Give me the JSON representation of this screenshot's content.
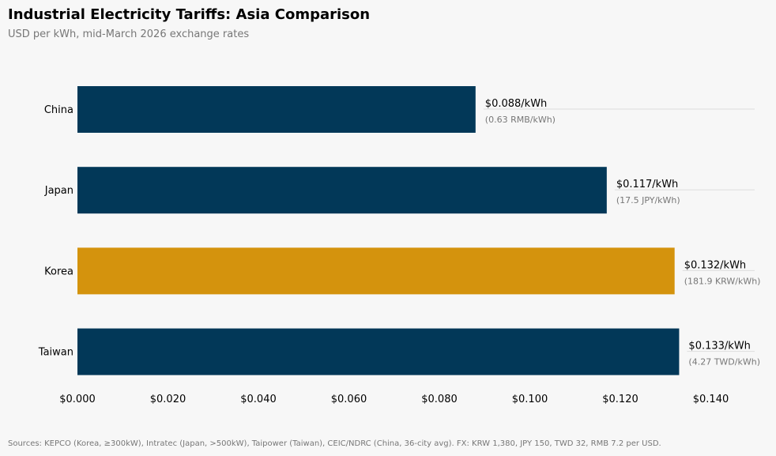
{
  "header": {
    "title": "Industrial Electricity Tariffs: Asia Comparison",
    "subtitle": "USD per kWh, mid-March 2026 exchange rates"
  },
  "footer": {
    "source": "Sources: KEPCO (Korea, ≥300kW), Intratec (Japan, >500kW), Taipower (Taiwan), CEIC/NDRC (China, 36-city avg). FX: KRW 1,380, JPY 150, TWD 32, RMB 7.2 per USD."
  },
  "colors": {
    "default_bar": "#023858",
    "highlight_bar": "#d4930d",
    "background": "#f7f7f7",
    "muted_text": "#777777",
    "leader_line": "#dddddd"
  },
  "chart_data": {
    "type": "bar",
    "orientation": "horizontal",
    "title": "Industrial Electricity Tariffs: Asia Comparison",
    "subtitle": "USD per kWh, mid-March 2026 exchange rates",
    "xlabel": "",
    "ylabel": "",
    "xlim": [
      0,
      0.15
    ],
    "x_ticks": [
      0.0,
      0.02,
      0.04,
      0.06,
      0.08,
      0.1,
      0.12,
      0.14
    ],
    "x_tick_labels": [
      "$0.000",
      "$0.020",
      "$0.040",
      "$0.060",
      "$0.080",
      "$0.100",
      "$0.120",
      "$0.140"
    ],
    "grid": false,
    "bars": [
      {
        "category": "China",
        "value": 0.088,
        "label": "$0.088/kWh",
        "local_label": "(0.63 RMB/kWh)",
        "highlight": false
      },
      {
        "category": "Japan",
        "value": 0.117,
        "label": "$0.117/kWh",
        "local_label": "(17.5 JPY/kWh)",
        "highlight": false
      },
      {
        "category": "Korea",
        "value": 0.132,
        "label": "$0.132/kWh",
        "local_label": "(181.9 KRW/kWh)",
        "highlight": true
      },
      {
        "category": "Taiwan",
        "value": 0.133,
        "label": "$0.133/kWh",
        "local_label": "(4.27 TWD/kWh)",
        "highlight": false
      }
    ]
  }
}
